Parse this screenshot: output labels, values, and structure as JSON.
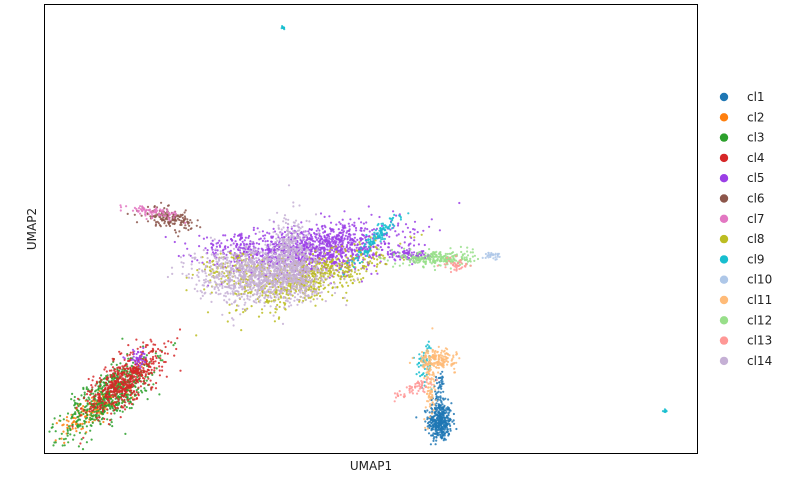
{
  "chart_data": {
    "type": "scatter",
    "xlabel": "UMAP1",
    "ylabel": "UMAP2",
    "xticks": [],
    "yticks": [],
    "grid": false,
    "legend_position": "right",
    "xlim": [
      0,
      20
    ],
    "ylim": [
      0,
      14
    ],
    "series": [
      {
        "name": "cl1",
        "color": "#1f77b4",
        "clusters": [
          {
            "cx": 12.1,
            "cy": 1.0,
            "sx": 0.18,
            "sy": 0.3,
            "rot": 0,
            "n": 360
          },
          {
            "cx": 12.05,
            "cy": 1.85,
            "sx": 0.1,
            "sy": 0.4,
            "rot": 0,
            "n": 70
          }
        ]
      },
      {
        "name": "cl2",
        "color": "#ff7f0e",
        "clusters": [
          {
            "cx": 1.5,
            "cy": 1.4,
            "sx": 0.65,
            "sy": 0.18,
            "rot": 35,
            "n": 150
          }
        ]
      },
      {
        "name": "cl3",
        "color": "#2ca02c",
        "clusters": [
          {
            "cx": 2.0,
            "cy": 1.85,
            "sx": 0.85,
            "sy": 0.32,
            "rot": 40,
            "n": 620
          }
        ]
      },
      {
        "name": "cl4",
        "color": "#d62728",
        "clusters": [
          {
            "cx": 2.45,
            "cy": 2.3,
            "sx": 0.72,
            "sy": 0.3,
            "rot": 40,
            "n": 560
          }
        ]
      },
      {
        "name": "cl5",
        "color": "#9b3fe6",
        "clusters": [
          {
            "cx": 8.5,
            "cy": 6.4,
            "sx": 1.2,
            "sy": 0.38,
            "rot": 8,
            "n": 1050
          },
          {
            "cx": 6.1,
            "cy": 6.4,
            "sx": 0.8,
            "sy": 0.22,
            "rot": 0,
            "n": 220
          },
          {
            "cx": 11.2,
            "cy": 6.2,
            "sx": 0.35,
            "sy": 0.08,
            "rot": -5,
            "n": 90
          },
          {
            "cx": 2.85,
            "cy": 3.0,
            "sx": 0.18,
            "sy": 0.12,
            "rot": 0,
            "n": 40
          }
        ]
      },
      {
        "name": "cl6",
        "color": "#8c564b",
        "clusters": [
          {
            "cx": 3.8,
            "cy": 7.35,
            "sx": 0.38,
            "sy": 0.14,
            "rot": -12,
            "n": 160
          }
        ]
      },
      {
        "name": "cl7",
        "color": "#e377c2",
        "clusters": [
          {
            "cx": 3.3,
            "cy": 7.55,
            "sx": 0.4,
            "sy": 0.08,
            "rot": -10,
            "n": 80
          }
        ]
      },
      {
        "name": "cl8",
        "color": "#bcbd22",
        "clusters": [
          {
            "cx": 8.2,
            "cy": 5.5,
            "sx": 1.1,
            "sy": 0.32,
            "rot": 20,
            "n": 620
          },
          {
            "cx": 5.9,
            "cy": 5.7,
            "sx": 0.6,
            "sy": 0.3,
            "rot": 0,
            "n": 160
          }
        ]
      },
      {
        "name": "cl9",
        "color": "#17becf",
        "clusters": [
          {
            "cx": 10.1,
            "cy": 6.7,
            "sx": 0.55,
            "sy": 0.09,
            "rot": 48,
            "n": 130
          },
          {
            "cx": 11.65,
            "cy": 2.9,
            "sx": 0.12,
            "sy": 0.3,
            "rot": 0,
            "n": 60
          },
          {
            "cx": 7.3,
            "cy": 13.3,
            "sx": 0.04,
            "sy": 0.03,
            "rot": 0,
            "n": 12
          },
          {
            "cx": 19.0,
            "cy": 1.35,
            "sx": 0.03,
            "sy": 0.03,
            "rot": 0,
            "n": 10
          }
        ]
      },
      {
        "name": "cl10",
        "color": "#aec7e8",
        "clusters": [
          {
            "cx": 13.7,
            "cy": 6.2,
            "sx": 0.15,
            "sy": 0.05,
            "rot": 0,
            "n": 30
          }
        ]
      },
      {
        "name": "cl11",
        "color": "#ffbb78",
        "clusters": [
          {
            "cx": 12.0,
            "cy": 2.95,
            "sx": 0.28,
            "sy": 0.15,
            "rot": 0,
            "n": 170
          },
          {
            "cx": 11.8,
            "cy": 2.1,
            "sx": 0.09,
            "sy": 0.55,
            "rot": 0,
            "n": 90
          }
        ]
      },
      {
        "name": "cl12",
        "color": "#98df8a",
        "clusters": [
          {
            "cx": 12.0,
            "cy": 6.1,
            "sx": 0.55,
            "sy": 0.13,
            "rot": 0,
            "n": 260
          }
        ]
      },
      {
        "name": "cl13",
        "color": "#ff9896",
        "clusters": [
          {
            "cx": 11.35,
            "cy": 2.05,
            "sx": 0.35,
            "sy": 0.1,
            "rot": 28,
            "n": 60
          },
          {
            "cx": 12.6,
            "cy": 5.9,
            "sx": 0.2,
            "sy": 0.12,
            "rot": 0,
            "n": 40
          }
        ]
      },
      {
        "name": "cl14",
        "color": "#c5b0d5",
        "clusters": [
          {
            "cx": 6.4,
            "cy": 5.6,
            "sx": 0.9,
            "sy": 0.45,
            "rot": 0,
            "n": 900
          },
          {
            "cx": 7.6,
            "cy": 6.3,
            "sx": 0.3,
            "sy": 0.55,
            "rot": 0,
            "n": 320
          },
          {
            "cx": 7.6,
            "cy": 5.5,
            "sx": 0.6,
            "sy": 0.3,
            "rot": 0,
            "n": 260
          }
        ]
      }
    ]
  }
}
